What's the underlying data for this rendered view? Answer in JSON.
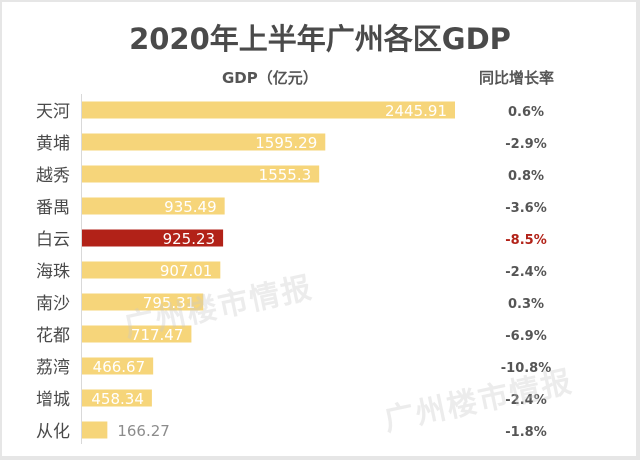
{
  "chart_data": {
    "type": "bar",
    "orientation": "horizontal",
    "title": "2020年上半年广州各区GDP",
    "value_header": "GDP（亿元）",
    "growth_header": "同比增长率",
    "categories": [
      "天河",
      "黄埔",
      "越秀",
      "番禺",
      "白云",
      "海珠",
      "南沙",
      "花都",
      "荔湾",
      "增城",
      "从化"
    ],
    "values": [
      2445.91,
      1595.29,
      1555.3,
      935.49,
      925.23,
      907.01,
      795.31,
      717.47,
      466.67,
      458.34,
      166.27
    ],
    "value_labels": [
      "2445.91",
      "1595.29",
      "1555.3",
      "935.49",
      "925.23",
      "907.01",
      "795.31",
      "717.47",
      "466.67",
      "458.34",
      "166.27"
    ],
    "growth": [
      "0.6%",
      "-2.9%",
      "0.8%",
      "-3.6%",
      "-8.5%",
      "-2.4%",
      "0.3%",
      "-6.9%",
      "-10.8%",
      "-2.4%",
      "-1.8%"
    ],
    "highlight": "白云",
    "xlim": [
      0,
      2445.91
    ],
    "grid": false,
    "legend": "none",
    "colors": {
      "bar": "#F6D57A",
      "highlight_bar": "#B22218",
      "highlight_text": "#B22218",
      "text": "#555555"
    }
  },
  "watermarks": [
    "广州楼市情报",
    "广州楼市情报"
  ]
}
